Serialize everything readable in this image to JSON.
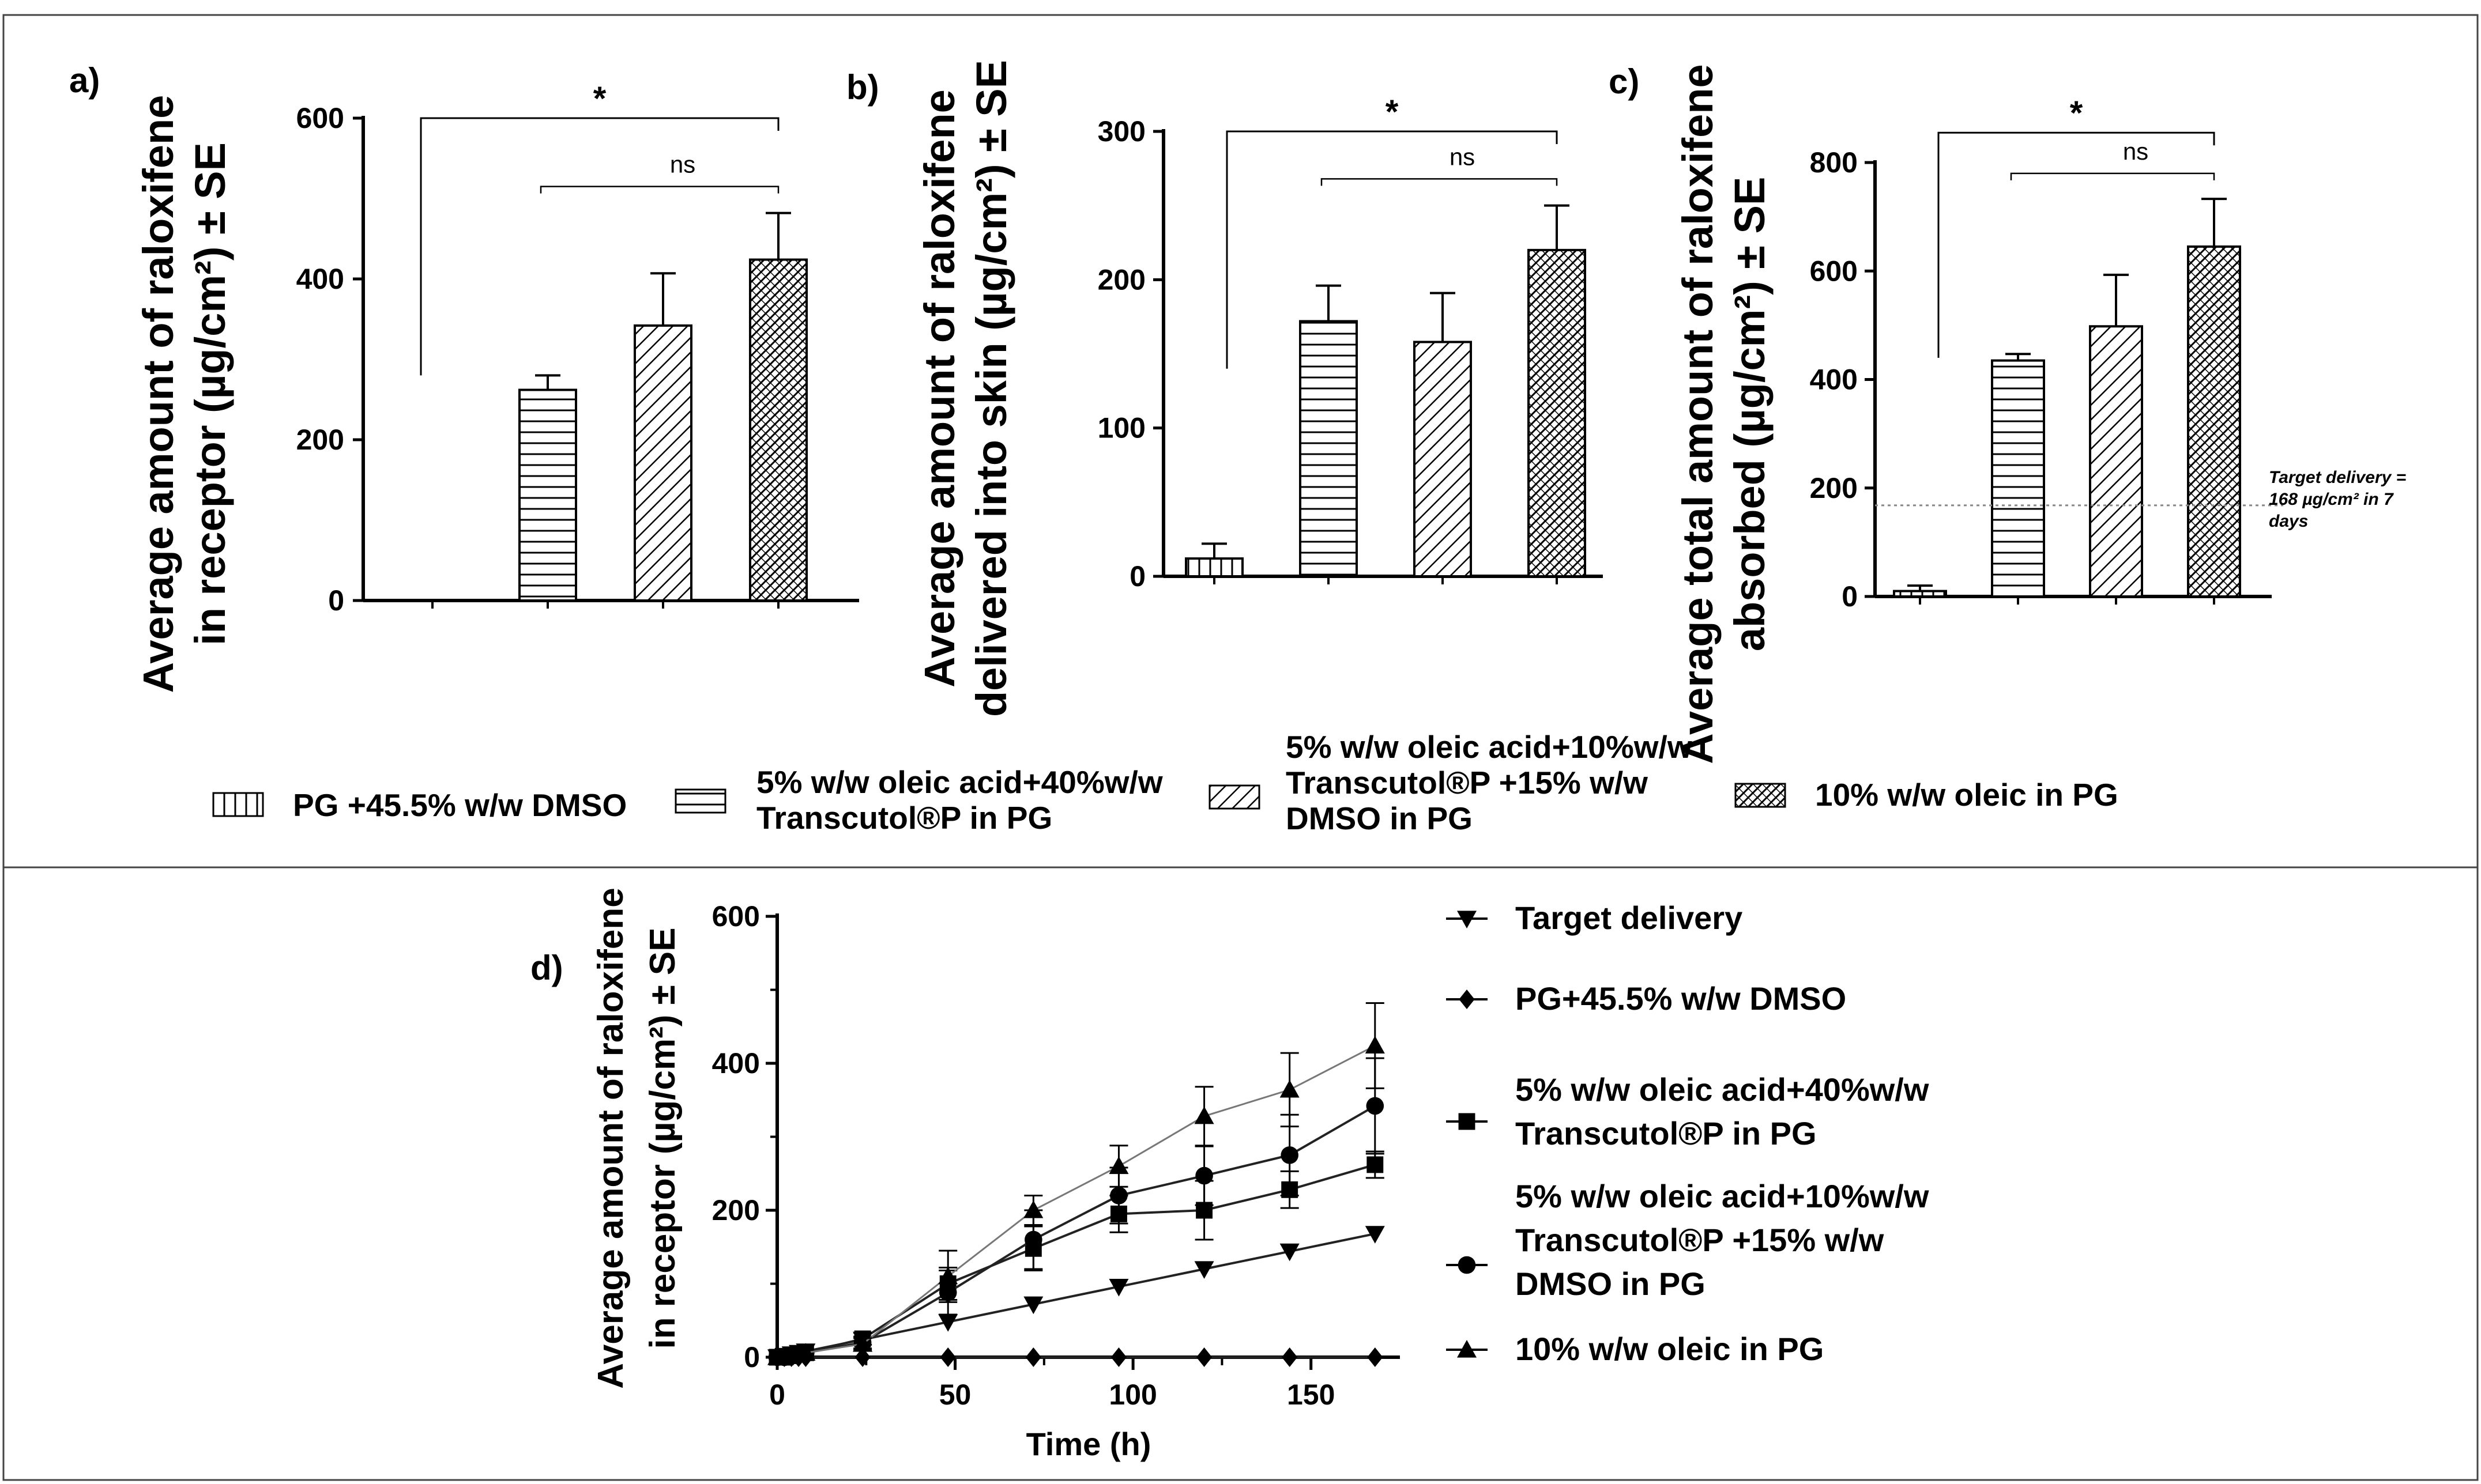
{
  "colors": {
    "ink": "#000000",
    "frame": "#444444",
    "target_line": "#888888",
    "series_line": "#555555"
  },
  "legend_top": [
    {
      "label": "PG +45.5% w/w DMSO",
      "pattern": "vlines"
    },
    {
      "label": "5% w/w oleic acid+40%w/w\nTranscutol®P in PG",
      "pattern": "hlines"
    },
    {
      "label": "5% w/w oleic acid+10%w/w\nTranscutol®P +15% w/w\nDMSO in PG",
      "pattern": "diag"
    },
    {
      "label": "10% w/w oleic in PG",
      "pattern": "cross"
    }
  ],
  "chart_data": [
    {
      "panel": "a)",
      "type": "bar",
      "ylabel": "Average amount of raloxifene\nin receptor (µg/cm²) ± SE",
      "ylim": [
        0,
        600
      ],
      "yticks": [
        0,
        200,
        400,
        600
      ],
      "categories": [
        "PG +45.5% w/w DMSO",
        "5% w/w oleic acid+40%w/w Transcutol®P in PG",
        "5% w/w oleic acid+10%w/w Transcutol®P +15% w/w DMSO in PG",
        "10% w/w oleic in PG"
      ],
      "values": [
        0,
        262,
        342,
        424
      ],
      "errors": [
        0,
        18,
        65,
        58
      ],
      "significance": [
        {
          "label": "*",
          "from": 0,
          "to": 3,
          "y": 600,
          "left_drop_to": 280
        },
        {
          "label": "ns",
          "from": 1,
          "to": 3,
          "y": 515
        }
      ]
    },
    {
      "panel": "b)",
      "type": "bar",
      "ylabel": "Average amount of raloxifene\ndelivered into skin (µg/cm²) ± SE",
      "ylim": [
        0,
        300
      ],
      "yticks": [
        0,
        100,
        200,
        300
      ],
      "categories": [
        "PG +45.5% w/w DMSO",
        "5% w/w oleic acid+40%w/w Transcutol®P in PG",
        "5% w/w oleic acid+10%w/w Transcutol®P +15% w/w DMSO in PG",
        "10% w/w oleic in PG"
      ],
      "values": [
        12,
        172,
        158,
        220
      ],
      "errors": [
        10,
        24,
        33,
        30
      ],
      "significance": [
        {
          "label": "*",
          "from": 0,
          "to": 3,
          "y": 300,
          "left_drop_to": 140
        },
        {
          "label": "ns",
          "from": 1,
          "to": 3,
          "y": 268
        }
      ]
    },
    {
      "panel": "c)",
      "type": "bar",
      "ylabel": "Average total amount of raloxifene\nabsorbed (µg/cm²) ± SE",
      "ylim": [
        0,
        800
      ],
      "yticks": [
        0,
        200,
        400,
        600,
        800
      ],
      "categories": [
        "PG +45.5% w/w DMSO",
        "5% w/w oleic acid+40%w/w Transcutol®P in PG",
        "5% w/w oleic acid+10%w/w Transcutol®P +15% w/w DMSO in PG",
        "10% w/w oleic in PG"
      ],
      "values": [
        10,
        435,
        498,
        645
      ],
      "errors": [
        10,
        12,
        95,
        88
      ],
      "reference_line": {
        "y": 168,
        "label": "Target delivery =\n168 µg/cm² in 7\ndays"
      },
      "significance": [
        {
          "label": "*",
          "from": 0,
          "to": 3,
          "y": 855,
          "left_drop_to": 440
        },
        {
          "label": "ns",
          "from": 1,
          "to": 3,
          "y": 780
        }
      ]
    },
    {
      "panel": "d)",
      "type": "line",
      "xlabel": "Time (h)",
      "ylabel": "Average amount of raloxifene\nin receptor (µg/cm²) ± SE",
      "xlim": [
        0,
        175
      ],
      "ylim": [
        0,
        600
      ],
      "xticks": [
        0,
        50,
        100,
        150
      ],
      "yticks": [
        0,
        200,
        400,
        600
      ],
      "x": [
        0,
        2,
        4,
        6,
        8,
        24,
        48,
        72,
        96,
        120,
        144,
        168
      ],
      "series": [
        {
          "name": "Target delivery",
          "marker": "triangle-down",
          "values": [
            0,
            2,
            4,
            6,
            8,
            24,
            48,
            72,
            96,
            120,
            144,
            168
          ],
          "errors": []
        },
        {
          "name": "PG+45.5% w/w DMSO",
          "marker": "diamond",
          "values": [
            0,
            0,
            0,
            0,
            0,
            0,
            0,
            0,
            0,
            0,
            0,
            0
          ],
          "errors": []
        },
        {
          "name": "5% w/w oleic acid+40%w/w\nTranscutol®P in PG",
          "marker": "square",
          "values": [
            0,
            0,
            2,
            4,
            6,
            25,
            100,
            148,
            195,
            200,
            228,
            262
          ],
          "errors": [
            0,
            0,
            0,
            0,
            0,
            8,
            22,
            30,
            25,
            40,
            25,
            18
          ]
        },
        {
          "name": "5% w/w oleic acid+10%w/w\nTranscutol®P +15% w/w\nDMSO in PG",
          "marker": "circle",
          "values": [
            0,
            0,
            2,
            4,
            6,
            20,
            88,
            160,
            220,
            247,
            275,
            342
          ],
          "errors": [
            0,
            0,
            0,
            0,
            0,
            8,
            30,
            40,
            38,
            40,
            55,
            65
          ]
        },
        {
          "name": "10% w/w oleic in PG",
          "marker": "triangle-up",
          "values": [
            0,
            0,
            2,
            4,
            6,
            18,
            110,
            200,
            260,
            328,
            364,
            424
          ],
          "errors": [
            0,
            0,
            0,
            0,
            0,
            8,
            35,
            20,
            28,
            40,
            50,
            58
          ]
        }
      ]
    }
  ]
}
